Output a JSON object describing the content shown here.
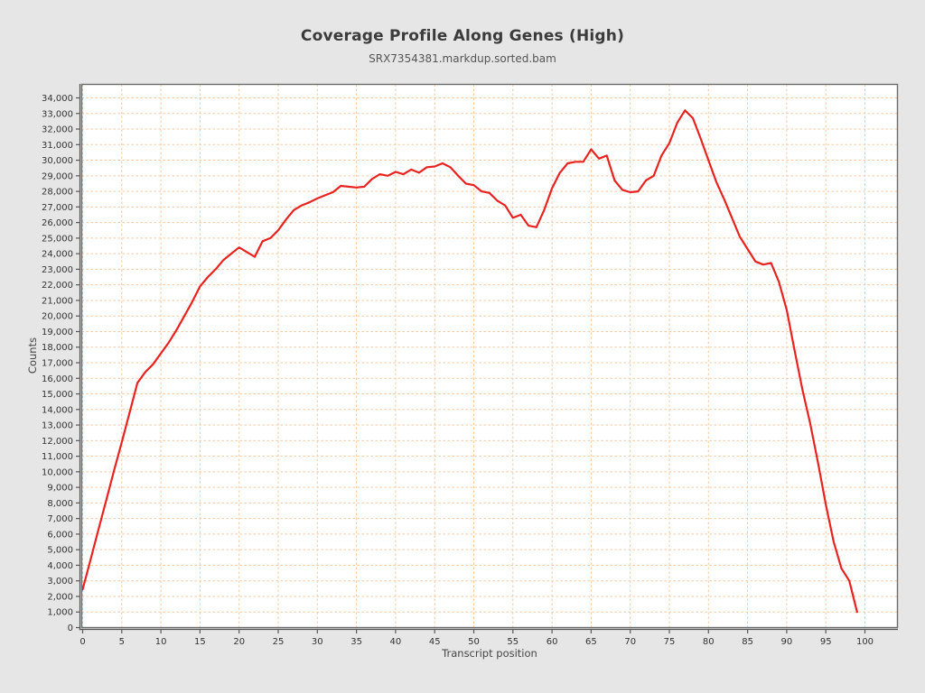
{
  "chart_data": {
    "type": "line",
    "title": "Coverage Profile Along Genes (High)",
    "subtitle": "SRX7354381.markdup.sorted.bam",
    "xlabel": "Transcript position",
    "ylabel": "Counts",
    "legend": "none",
    "grid": "dashed-both-axes",
    "x_start": 0,
    "x_step": 1,
    "values": [
      2450,
      4350,
      6250,
      8150,
      10050,
      11900,
      13800,
      15700,
      16400,
      16900,
      17600,
      18300,
      19100,
      20000,
      20900,
      21900,
      22500,
      23000,
      23600,
      24000,
      24400,
      24100,
      23800,
      24800,
      25000,
      25500,
      26200,
      26800,
      27100,
      27300,
      27550,
      27750,
      27950,
      28350,
      28300,
      28250,
      28300,
      28800,
      29100,
      29000,
      29250,
      29100,
      29400,
      29200,
      29550,
      29600,
      29800,
      29550,
      29000,
      28500,
      28400,
      28000,
      27900,
      27400,
      27100,
      26300,
      26500,
      25800,
      25700,
      26800,
      28200,
      29200,
      29800,
      29900,
      29900,
      30700,
      30100,
      30300,
      28700,
      28100,
      27950,
      28000,
      28700,
      29000,
      30300,
      31100,
      32400,
      33200,
      32700,
      31400,
      30000,
      28600,
      27500,
      26300,
      25100,
      24300,
      23500,
      23300,
      23400,
      22200,
      20400,
      17800,
      15300,
      13100,
      10600,
      7900,
      5500,
      3800,
      3000,
      1000
    ],
    "xlim": [
      -0.12,
      104.2
    ],
    "ylim": [
      0,
      34870
    ],
    "x_ticks": {
      "min": 0,
      "max": 100,
      "step": 5
    },
    "y_ticks": {
      "min": 0,
      "max": 34000,
      "step": 1000
    },
    "y_tick_format": "thousands-comma",
    "colors": {
      "line": "#e8231f",
      "grid": "#f5c9a2",
      "plot_bg": "#ffffff",
      "page_bg": "#e6e6e6",
      "border": "#6b6b6b",
      "axis_spine": "#555555",
      "tick_text": "#333333",
      "title_text": "#3b3b3b",
      "subtitle_text": "#555555",
      "axis_label_text": "#444444"
    }
  }
}
